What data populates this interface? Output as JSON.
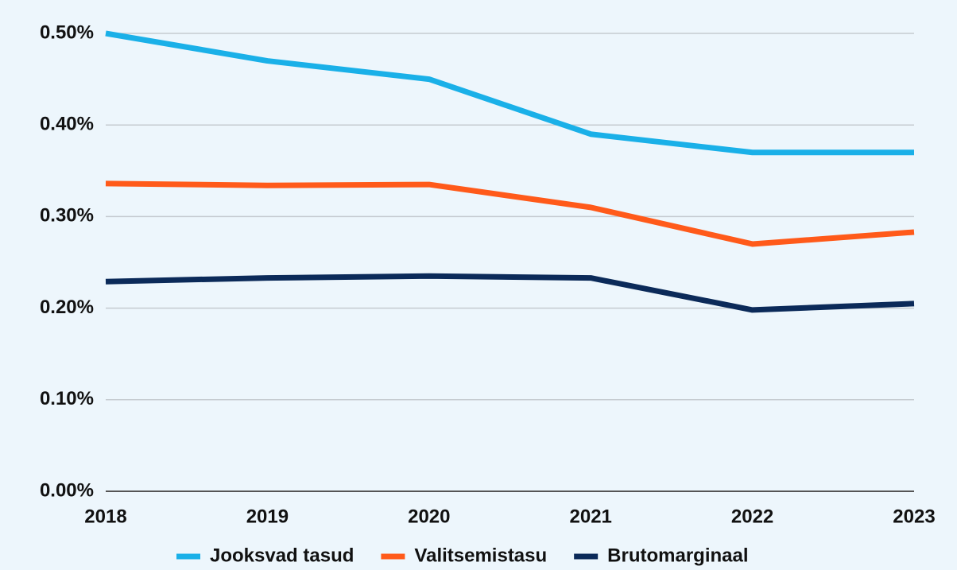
{
  "chart_data": {
    "type": "line",
    "categories": [
      "2018",
      "2019",
      "2020",
      "2021",
      "2022",
      "2023"
    ],
    "series": [
      {
        "name": "Jooksvad tasud",
        "color": "#1ab0e8",
        "values": [
          0.5,
          0.47,
          0.45,
          0.39,
          0.37,
          0.37
        ]
      },
      {
        "name": "Valitsemistasu",
        "color": "#ff5a1a",
        "values": [
          0.336,
          0.334,
          0.335,
          0.31,
          0.27,
          0.283
        ]
      },
      {
        "name": "Brutomarginaal",
        "color": "#0b2a59",
        "values": [
          0.229,
          0.233,
          0.235,
          0.233,
          0.198,
          0.205
        ]
      }
    ],
    "ylim": [
      0,
      0.5
    ],
    "yticks": [
      {
        "value": 0,
        "label": "0.00%"
      },
      {
        "value": 0.1,
        "label": "0.10%"
      },
      {
        "value": 0.2,
        "label": "0.20%"
      },
      {
        "value": 0.3,
        "label": "0.30%"
      },
      {
        "value": 0.4,
        "label": "0.40%"
      },
      {
        "value": 0.5,
        "label": "0.50%"
      }
    ],
    "grid": true,
    "legend": "bottom"
  }
}
